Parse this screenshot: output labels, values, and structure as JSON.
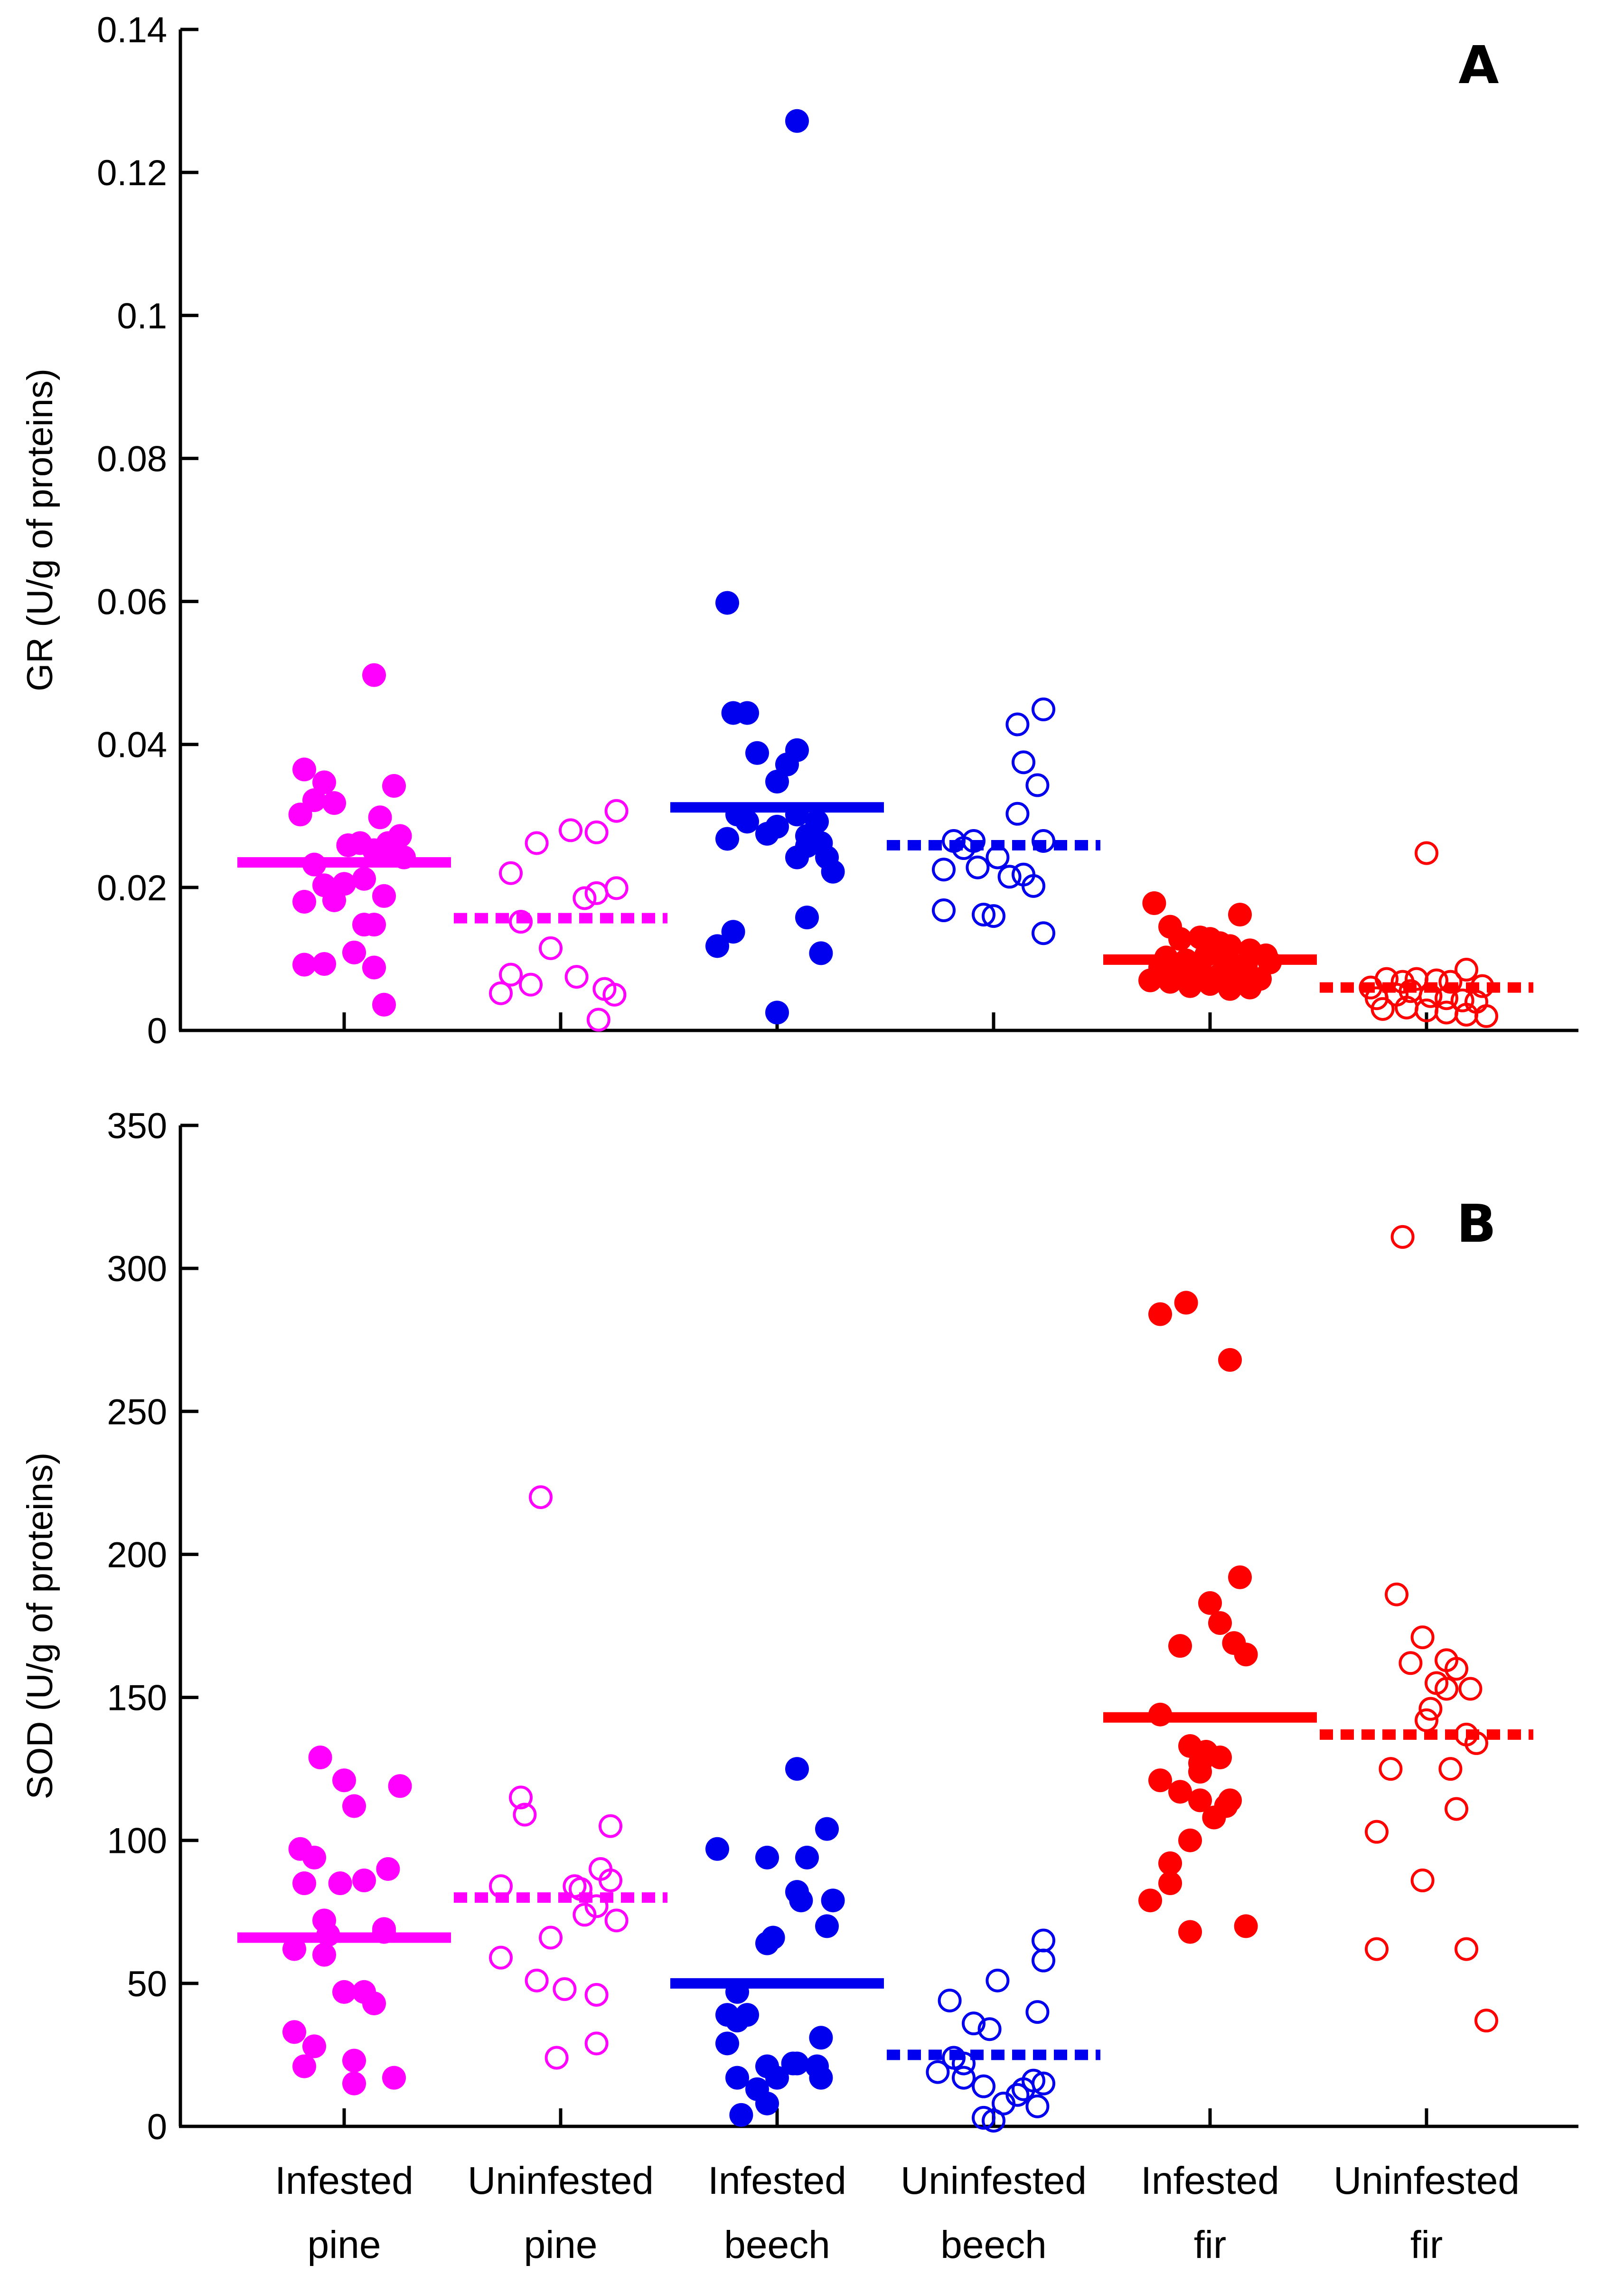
{
  "chart_data": {
    "type": "scatter",
    "categories": [
      {
        "line1": "Infested",
        "line2": "pine"
      },
      {
        "line1": "Uninfested",
        "line2": "pine"
      },
      {
        "line1": "Infested",
        "line2": "beech"
      },
      {
        "line1": "Uninfested",
        "line2": "beech"
      },
      {
        "line1": "Infested",
        "line2": "fir"
      },
      {
        "line1": "Uninfested",
        "line2": "fir"
      }
    ],
    "colors": [
      "#ff00ff",
      "#ff00ff",
      "#0000ee",
      "#0000ee",
      "#ff0000",
      "#ff0000"
    ],
    "filled": [
      true,
      false,
      true,
      false,
      true,
      false
    ],
    "panels": [
      {
        "letter": "A",
        "ylabel": "GR (U/g of proteins)",
        "ylim": [
          0,
          0.14
        ],
        "yticks": [
          0,
          0.02,
          0.04,
          0.06,
          0.08,
          0.1,
          0.12,
          0.14
        ],
        "ytick_labels": [
          "0",
          "0.02",
          "0.04",
          "0.06",
          "0.08",
          "0.1",
          "0.12",
          "0.14"
        ],
        "means": [
          0.0235,
          0.0157,
          0.0312,
          0.0259,
          0.0099,
          0.006
        ],
        "groups": [
          {
            "offsets": [
              0.15,
              -0.2,
              -0.1,
              -0.15,
              -0.05,
              0.25,
              0.18,
              0.28,
              -0.22,
              0.02,
              0.08,
              0.22,
              0.15,
              0.3,
              -0.15,
              0.0,
              0.1,
              0.2,
              -0.2,
              -0.05,
              0.15,
              0.1,
              0.05,
              -0.2,
              -0.1,
              0.15,
              0.2,
              -0.1,
              0.2
            ],
            "values": [
              0.0497,
              0.0365,
              0.0347,
              0.0322,
              0.0318,
              0.0342,
              0.0298,
              0.0272,
              0.0302,
              0.0259,
              0.0262,
              0.0262,
              0.0252,
              0.0242,
              0.0232,
              0.0205,
              0.0212,
              0.0188,
              0.018,
              0.0182,
              0.0148,
              0.0148,
              0.0109,
              0.0092,
              0.0093,
              0.0088,
              0.0036,
              0.0203,
              0.0253
            ]
          },
          {
            "offsets": [
              -0.25,
              -0.12,
              0.05,
              0.18,
              0.28,
              -0.2,
              -0.2,
              0.12,
              0.18,
              0.28,
              -0.05,
              0.08,
              -0.25,
              -0.3,
              -0.15,
              0.22,
              0.27,
              0.19
            ],
            "values": [
              0.022,
              0.0262,
              0.028,
              0.0277,
              0.0307,
              0.0152,
              0.0152,
              0.0185,
              0.0192,
              0.0199,
              0.0115,
              0.0075,
              0.0078,
              0.0052,
              0.0064,
              0.0058,
              0.005,
              0.0015
            ]
          },
          {
            "offsets": [
              0.1,
              -0.25,
              -0.22,
              -0.15,
              -0.1,
              0.0,
              0.1,
              0.05,
              -0.2,
              -0.25,
              -0.15,
              -0.05,
              0.1,
              0.2,
              0.15,
              0.25,
              0.15,
              0.0,
              0.1,
              0.22,
              0.28,
              -0.3,
              -0.22,
              0.22,
              0.15,
              0.0
            ],
            "values": [
              0.1272,
              0.0598,
              0.0444,
              0.0444,
              0.0388,
              0.0348,
              0.0392,
              0.0372,
              0.0302,
              0.0268,
              0.0292,
              0.0275,
              0.0302,
              0.0292,
              0.0272,
              0.0242,
              0.0258,
              0.0285,
              0.0242,
              0.0262,
              0.0222,
              0.0118,
              0.0138,
              0.0108,
              0.0158,
              0.0025
            ]
          },
          {
            "offsets": [
              0.12,
              0.25,
              -0.2,
              -0.15,
              0.15,
              0.22,
              -0.1,
              0.02,
              0.12,
              0.25,
              -0.25,
              -0.08,
              0.08,
              0.15,
              0.2,
              -0.25,
              -0.05,
              0.0,
              0.25
            ],
            "values": [
              0.0428,
              0.0449,
              0.0265,
              0.0255,
              0.0375,
              0.0343,
              0.0265,
              0.0242,
              0.0303,
              0.0265,
              0.0225,
              0.0228,
              0.0215,
              0.0218,
              0.0202,
              0.0168,
              0.0162,
              0.016,
              0.0136
            ]
          },
          {
            "offsets": [
              -0.28,
              -0.2,
              -0.15,
              -0.05,
              0.0,
              0.05,
              0.1,
              0.15,
              0.2,
              0.28,
              -0.22,
              -0.12,
              -0.02,
              0.08,
              0.18,
              -0.25,
              -0.15,
              -0.05,
              0.05,
              0.15,
              0.25,
              -0.2,
              -0.1,
              0.0,
              0.1,
              0.2,
              -0.3,
              0.3
            ],
            "values": [
              0.0178,
              0.0145,
              0.0128,
              0.013,
              0.0128,
              0.0122,
              0.0118,
              0.0162,
              0.0112,
              0.0105,
              0.0102,
              0.0098,
              0.0105,
              0.0098,
              0.0092,
              0.0088,
              0.0082,
              0.0085,
              0.0078,
              0.0075,
              0.0072,
              0.0068,
              0.0062,
              0.0065,
              0.0058,
              0.006,
              0.007,
              0.0095
            ]
          },
          {
            "offsets": [
              0.0,
              -0.28,
              -0.2,
              -0.12,
              -0.05,
              0.05,
              0.12,
              0.2,
              0.28,
              -0.25,
              -0.15,
              -0.08,
              0.02,
              0.1,
              0.18,
              0.25,
              -0.22,
              -0.1,
              0.0,
              0.1,
              0.2,
              0.3
            ],
            "values": [
              0.0248,
              0.006,
              0.0072,
              0.0068,
              0.0072,
              0.007,
              0.0068,
              0.0085,
              0.0062,
              0.0045,
              0.005,
              0.0055,
              0.0048,
              0.0045,
              0.0042,
              0.004,
              0.003,
              0.0032,
              0.0028,
              0.0025,
              0.0022,
              0.002
            ]
          }
        ]
      },
      {
        "letter": "B",
        "ylabel": "SOD (U/g of proteins)",
        "ylim": [
          0,
          350
        ],
        "yticks": [
          0,
          50,
          100,
          150,
          200,
          250,
          300,
          350
        ],
        "ytick_labels": [
          "0",
          "50",
          "100",
          "150",
          "200",
          "250",
          "300",
          "350"
        ],
        "means": [
          66,
          80,
          50,
          25,
          143,
          137
        ],
        "groups": [
          {
            "offsets": [
              -0.12,
              0.0,
              0.28,
              -0.22,
              0.05,
              -0.15,
              -0.02,
              0.22,
              0.1,
              -0.2,
              -0.1,
              0.2,
              -0.08,
              -0.25,
              0.2,
              0.0,
              0.1,
              -0.25,
              0.15,
              -0.1,
              0.25,
              -0.2,
              0.05,
              -0.15,
              0.05
            ],
            "values": [
              129,
              121,
              119,
              97,
              112,
              94,
              85,
              90,
              86,
              85,
              72,
              69,
              67,
              62,
              68,
              47,
              47,
              33,
              43,
              60,
              17,
              21,
              23,
              28,
              15
            ]
          },
          {
            "offsets": [
              -0.1,
              -0.2,
              -0.18,
              0.25,
              -0.3,
              0.07,
              0.2,
              0.25,
              -0.05,
              0.18,
              0.12,
              0.28,
              0.1,
              -0.3,
              -0.12,
              0.02,
              0.18,
              0.18,
              -0.02
            ],
            "values": [
              220,
              115,
              109,
              105,
              84,
              84,
              90,
              86,
              66,
              77,
              74,
              72,
              83,
              59,
              51,
              48,
              46,
              29,
              24
            ]
          },
          {
            "offsets": [
              0.1,
              0.25,
              -0.3,
              0.15,
              -0.05,
              0.1,
              0.12,
              0.25,
              0.28,
              -0.02,
              -0.05,
              -0.2,
              -0.25,
              -0.2,
              -0.15,
              0.22,
              -0.25,
              -0.05,
              0.2,
              0.08,
              0.0,
              -0.2,
              -0.1,
              0.1,
              0.22,
              -0.05,
              -0.18
            ],
            "values": [
              125,
              104,
              97,
              94,
              94,
              82,
              79,
              70,
              79,
              66,
              64,
              47,
              39,
              37,
              39,
              31,
              29,
              21,
              21,
              22,
              17,
              17,
              13,
              22,
              17,
              8,
              4
            ]
          },
          {
            "offsets": [
              0.25,
              -0.22,
              -0.1,
              -0.02,
              0.02,
              0.25,
              -0.2,
              -0.15,
              0.22,
              0.2,
              -0.28,
              -0.15,
              -0.05,
              0.12,
              0.15,
              0.22,
              0.05,
              -0.05,
              0.0,
              0.25
            ],
            "values": [
              65,
              44,
              36,
              34,
              51,
              58,
              24,
              22,
              40,
              16,
              19,
              17,
              14,
              11,
              13,
              7,
              8,
              3,
              2,
              15
            ]
          },
          {
            "offsets": [
              -0.25,
              -0.12,
              0.1,
              0.15,
              0.0,
              0.05,
              0.12,
              0.18,
              -0.15,
              -0.25,
              -0.1,
              -0.02,
              0.05,
              -0.05,
              -0.05,
              -0.25,
              -0.15,
              -0.05,
              0.08,
              0.1,
              0.02,
              -0.1,
              -0.3,
              -0.2,
              -0.1,
              0.18,
              -0.2
            ],
            "values": [
              284,
              288,
              268,
              192,
              183,
              176,
              169,
              165,
              168,
              144,
              133,
              131,
              129,
              127,
              124,
              121,
              117,
              114,
              112,
              114,
              108,
              100,
              79,
              92,
              68,
              70,
              85
            ]
          },
          {
            "offsets": [
              -0.12,
              -0.15,
              -0.02,
              0.15,
              0.1,
              -0.08,
              0.05,
              0.02,
              0.1,
              0.22,
              0.0,
              0.2,
              0.25,
              -0.18,
              0.12,
              -0.25,
              0.15,
              -0.02,
              -0.25,
              0.2,
              0.3
            ],
            "values": [
              311,
              186,
              171,
              160,
              163,
              162,
              155,
              146,
              153,
              153,
              142,
              137,
              134,
              125,
              125,
              103,
              111,
              86,
              62,
              62,
              37
            ]
          }
        ]
      }
    ]
  }
}
